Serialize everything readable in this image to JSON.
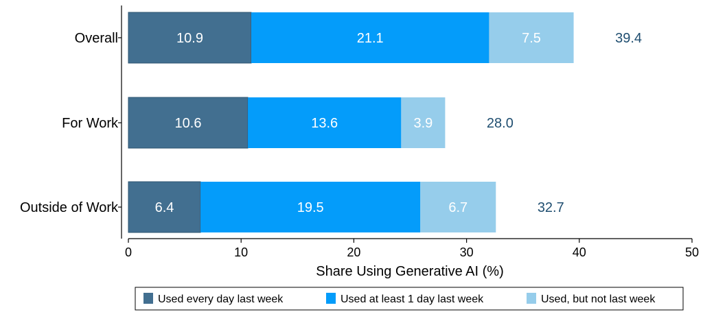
{
  "chart_data": {
    "type": "bar",
    "orientation": "horizontal",
    "stacked": true,
    "categories": [
      "Overall",
      "For Work",
      "Outside of Work"
    ],
    "series": [
      {
        "name": "Used every day last week",
        "values": [
          10.9,
          10.6,
          6.4
        ],
        "color": "#426f90"
      },
      {
        "name": "Used at least 1 day last week",
        "values": [
          21.1,
          13.6,
          19.5
        ],
        "color": "#049cfa"
      },
      {
        "name": "Used, but not last week",
        "values": [
          7.5,
          3.9,
          6.7
        ],
        "color": "#96cdeb"
      }
    ],
    "totals": [
      39.4,
      28.0,
      32.7
    ],
    "total_color": "#1f4e70",
    "xlabel": "Share Using Generative AI (%)",
    "xlim": [
      0,
      50
    ],
    "xticks": [
      0,
      10,
      20,
      30,
      40,
      50
    ],
    "grid": false,
    "legend_position": "bottom"
  }
}
